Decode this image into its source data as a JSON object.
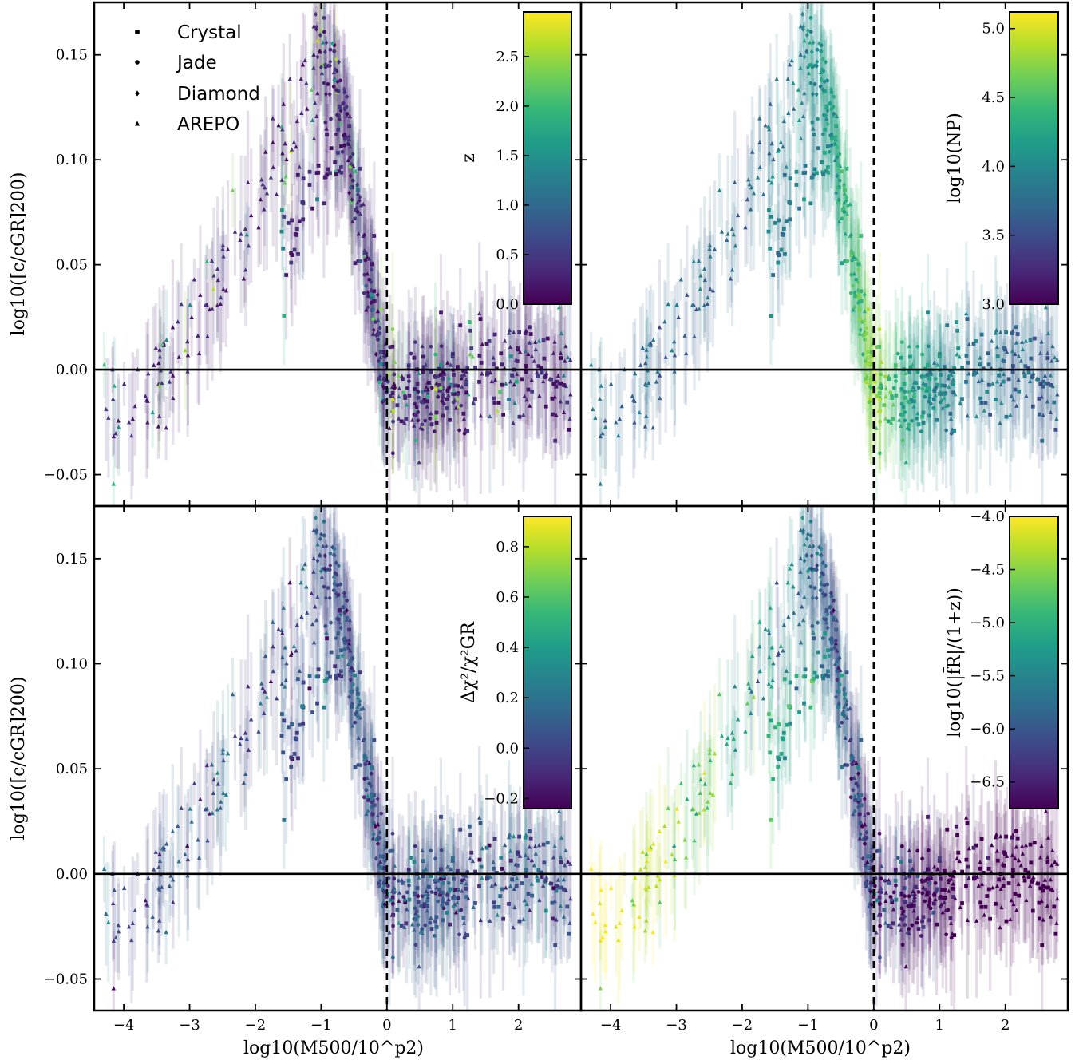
{
  "chart_data": {
    "type": "scatter",
    "layout": "2x2 grid, shared x and y axes",
    "xlabel": "log10(M500/10^p2)",
    "ylabel": "log10([c/cGR]200)",
    "xlim": [
      -4.45,
      2.95
    ],
    "ylim": [
      -0.065,
      0.175
    ],
    "xticks": [
      -4,
      -3,
      -2,
      -1,
      0,
      1,
      2
    ],
    "xtick_labels": [
      "−4",
      "−3",
      "−2",
      "−1",
      "0",
      "1",
      "2"
    ],
    "yticks": [
      -0.05,
      0.0,
      0.05,
      0.1,
      0.15
    ],
    "ytick_labels": [
      "−0.05",
      "0.00",
      "0.05",
      "0.10",
      "0.15"
    ],
    "reference_lines": {
      "horizontal_solid_y": 0,
      "vertical_dashed_x": 0
    },
    "legend": {
      "placement": "upper-left of top-left panel",
      "entries": [
        {
          "label": "Crystal",
          "marker": "square"
        },
        {
          "label": "Jade",
          "marker": "circle"
        },
        {
          "label": "Diamond",
          "marker": "diamond"
        },
        {
          "label": "AREPO",
          "marker": "triangle"
        }
      ]
    },
    "colormap": "viridis",
    "colormap_stops": [
      "#440154",
      "#482878",
      "#3e4989",
      "#31688e",
      "#26828e",
      "#1f9e89",
      "#35b779",
      "#6ece58",
      "#b5de2b",
      "#fde725"
    ],
    "data_groups": [
      {
        "name": "AREPO",
        "marker": "triangle",
        "trend": [
          [
            -4.3,
            -0.024
          ],
          [
            -3.8,
            -0.015
          ],
          [
            -3.4,
            0.0
          ],
          [
            -3.0,
            0.018
          ],
          [
            -2.6,
            0.04
          ],
          [
            -2.2,
            0.065
          ],
          [
            -1.8,
            0.09
          ],
          [
            -1.5,
            0.11
          ],
          [
            -1.2,
            0.135
          ],
          [
            -1.0,
            0.145
          ],
          [
            -0.8,
            0.15
          ],
          [
            -0.6,
            0.12
          ],
          [
            -0.4,
            0.07
          ],
          [
            -0.2,
            0.03
          ],
          [
            0.0,
            -0.005
          ],
          [
            0.3,
            -0.012
          ],
          [
            0.8,
            -0.008
          ],
          [
            1.4,
            -0.002
          ],
          [
            2.0,
            0.0
          ],
          [
            2.8,
            0.002
          ]
        ],
        "scatter": 0.012
      },
      {
        "name": "Crystal",
        "marker": "square",
        "trend": [
          [
            -1.6,
            0.055
          ],
          [
            -1.3,
            0.065
          ],
          [
            -1.1,
            0.085
          ],
          [
            -0.9,
            0.1
          ],
          [
            -0.7,
            0.11
          ],
          [
            -0.5,
            0.09
          ],
          [
            -0.3,
            0.05
          ],
          [
            -0.1,
            0.01
          ],
          [
            0.0,
            -0.01
          ],
          [
            0.5,
            -0.012
          ],
          [
            1.0,
            -0.005
          ],
          [
            1.5,
            0.0
          ],
          [
            2.0,
            0.0
          ],
          [
            2.5,
            -0.002
          ],
          [
            2.8,
            -0.004
          ]
        ],
        "scatter": 0.012
      },
      {
        "name": "Jade",
        "marker": "circle",
        "trend": [
          [
            -1.0,
            0.15
          ],
          [
            -0.8,
            0.14
          ],
          [
            -0.6,
            0.11
          ],
          [
            -0.4,
            0.07
          ],
          [
            -0.2,
            0.03
          ],
          [
            0.0,
            -0.01
          ],
          [
            0.4,
            -0.015
          ],
          [
            0.9,
            -0.01
          ],
          [
            1.3,
            -0.005
          ]
        ],
        "scatter": 0.014
      },
      {
        "name": "Diamond",
        "marker": "diamond",
        "trend": [
          [
            -1.1,
            0.16
          ],
          [
            -0.9,
            0.155
          ],
          [
            -0.7,
            0.13
          ],
          [
            -0.5,
            0.09
          ],
          [
            -0.3,
            0.05
          ],
          [
            -0.1,
            0.01
          ],
          [
            0.0,
            -0.005
          ]
        ],
        "scatter": 0.01
      }
    ],
    "panels": [
      {
        "id": "top-left",
        "color_variable": "z",
        "colorbar_label": "z",
        "colorbar_range": [
          0.0,
          2.95
        ],
        "colorbar_ticks": [
          0.0,
          0.5,
          1.0,
          1.5,
          2.0,
          2.5
        ],
        "colorbar_tick_labels": [
          "0.0",
          "0.5",
          "1.0",
          "1.5",
          "2.0",
          "2.5"
        ],
        "color_trend": "mostly low values (purple), few high-z points"
      },
      {
        "id": "top-right",
        "color_variable": "log10(NP)",
        "colorbar_label": "log10(NP)",
        "colorbar_range": [
          3.0,
          5.12
        ],
        "colorbar_ticks": [
          3.0,
          3.5,
          4.0,
          4.5,
          5.0
        ],
        "colorbar_tick_labels": [
          "3.0",
          "3.5",
          "4.0",
          "4.5",
          "5.0"
        ],
        "color_trend": "mixed, higher values near zero crossing"
      },
      {
        "id": "bottom-left",
        "color_variable": "Δχ²/χ²GR",
        "colorbar_label": "Δχ²/χ²GR",
        "colorbar_range": [
          -0.24,
          0.92
        ],
        "colorbar_ticks": [
          -0.2,
          0.0,
          0.2,
          0.4,
          0.6,
          0.8
        ],
        "colorbar_tick_labels": [
          "−0.2",
          "0.0",
          "0.2",
          "0.4",
          "0.6",
          "0.8"
        ],
        "color_trend": "mostly near 0.1 (blue-purple)"
      },
      {
        "id": "bottom-right",
        "color_variable": "log10(|fR|/(1+z))",
        "colorbar_label": "log10(|f̄R|/(1+z))",
        "colorbar_range": [
          -6.75,
          -4.0
        ],
        "colorbar_ticks": [
          -6.5,
          -6.0,
          -5.5,
          -5.0,
          -4.5,
          -4.0
        ],
        "colorbar_tick_labels": [
          "−6.5",
          "−6.0",
          "−5.5",
          "−5.0",
          "−4.5",
          "−4.0"
        ],
        "color_trend": "high values at low mass, low values at high mass"
      }
    ]
  }
}
